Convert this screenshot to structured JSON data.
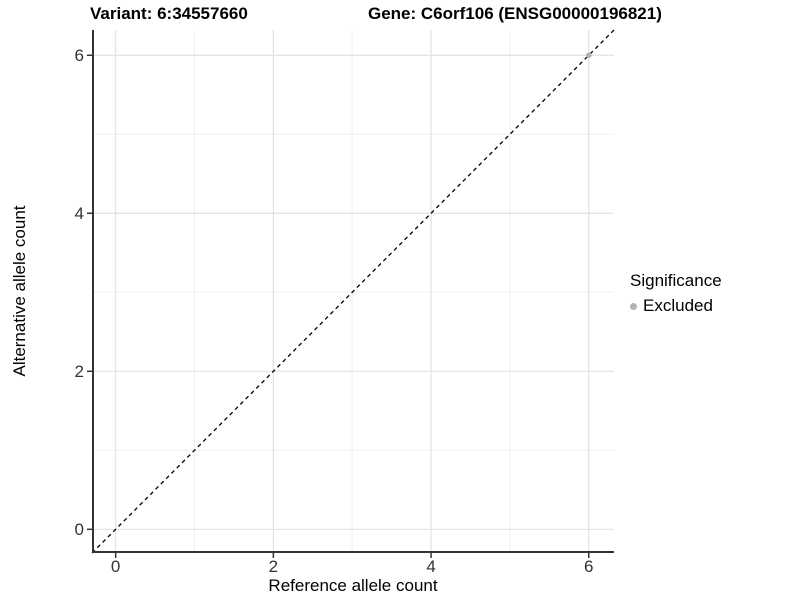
{
  "titles": {
    "variant": "Variant: 6:34557660",
    "gene": "Gene: C6orf106 (ENSG00000196821)"
  },
  "chart_data": {
    "type": "scatter",
    "xlabel": "Reference allele count",
    "ylabel": "Alternative allele count",
    "x_ticks": [
      0,
      2,
      4,
      6
    ],
    "y_ticks": [
      0,
      2,
      4,
      6
    ],
    "x_minor_ticks": [
      1,
      3,
      5
    ],
    "y_minor_ticks": [
      1,
      3,
      5
    ],
    "xlim": [
      -0.3,
      6.32
    ],
    "ylim": [
      -0.3,
      6.32
    ],
    "grid": true,
    "reference_line": {
      "type": "identity",
      "equation": "y = x",
      "style": "dashed",
      "color": "#000000"
    },
    "series": [
      {
        "name": "Excluded",
        "points": [
          {
            "x": 6,
            "y": 6
          }
        ],
        "color": "#b3b3b3"
      }
    ],
    "legend": {
      "position": "right",
      "title": "Significance",
      "items": [
        {
          "label": "Excluded",
          "color": "#b3b3b3"
        }
      ]
    },
    "colors": {
      "axis": "#333333",
      "tick": "#333333",
      "grid_major": "#e2e2e2",
      "grid_minor": "#efefef",
      "background": "#ffffff"
    }
  }
}
